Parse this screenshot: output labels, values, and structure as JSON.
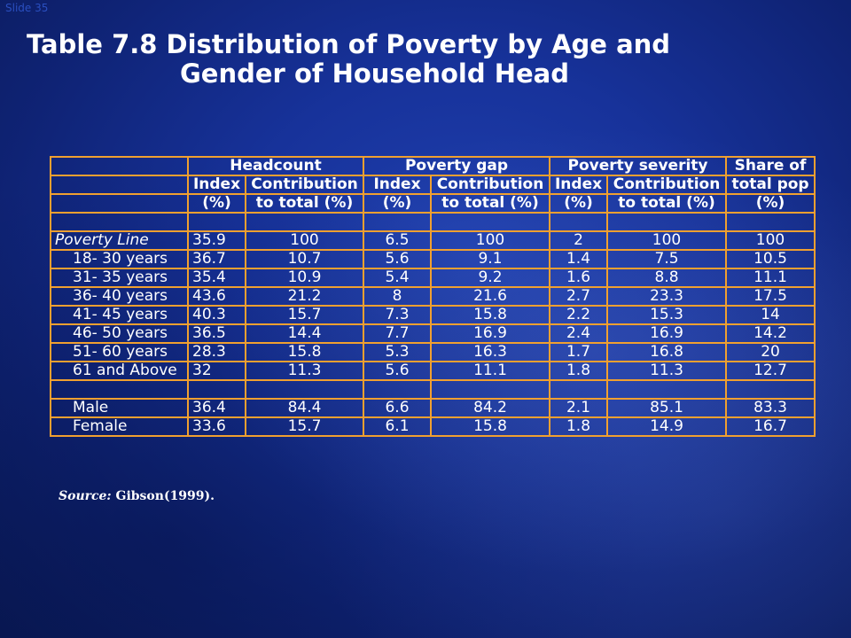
{
  "slide_label": "Slide 35",
  "title_line1": "Table 7.8 Distribution of Poverty by Age and",
  "title_line2": "Gender of Household Head",
  "header": {
    "headcount": "Headcount",
    "poverty_gap": "Poverty gap",
    "poverty_severity": "Poverty severity",
    "share_of": "Share of",
    "index": "Index",
    "pct": "(%)",
    "contribution": "Contribution",
    "to_total": "to total  (%)",
    "total_pop": "total pop"
  },
  "rows": [
    {
      "label": "Poverty Line",
      "values": [
        "35.9",
        "100",
        "6.5",
        "100",
        "2",
        "100",
        "100"
      ]
    },
    {
      "label": "18- 30 years",
      "values": [
        "36.7",
        "10.7",
        "5.6",
        "9.1",
        "1.4",
        "7.5",
        "10.5"
      ]
    },
    {
      "label": "31- 35 years",
      "values": [
        "35.4",
        "10.9",
        "5.4",
        "9.2",
        "1.6",
        "8.8",
        "11.1"
      ]
    },
    {
      "label": "36- 40 years",
      "values": [
        "43.6",
        "21.2",
        "8",
        "21.6",
        "2.7",
        "23.3",
        "17.5"
      ]
    },
    {
      "label": "41- 45 years",
      "values": [
        "40.3",
        "15.7",
        "7.3",
        "15.8",
        "2.2",
        "15.3",
        "14"
      ]
    },
    {
      "label": "46- 50 years",
      "values": [
        "36.5",
        "14.4",
        "7.7",
        "16.9",
        "2.4",
        "16.9",
        "14.2"
      ]
    },
    {
      "label": "51- 60 years",
      "values": [
        "28.3",
        "15.8",
        "5.3",
        "16.3",
        "1.7",
        "16.8",
        "20"
      ]
    },
    {
      "label": "61 and Above",
      "values": [
        "32",
        "11.3",
        "5.6",
        "11.1",
        "1.8",
        "11.3",
        "12.7"
      ]
    },
    {
      "label": "Male",
      "values": [
        "36.4",
        "84.4",
        "6.6",
        "84.2",
        "2.1",
        "85.1",
        "83.3"
      ]
    },
    {
      "label": "Female",
      "values": [
        "33.6",
        "15.7",
        "6.1",
        "15.8",
        "1.8",
        "14.9",
        "16.7"
      ]
    }
  ],
  "source_label": "Source:",
  "source_text": "Gibson(1999).",
  "colors": {
    "background": "#17329a",
    "grid_border": "#f0a030",
    "text": "#ffffff"
  }
}
